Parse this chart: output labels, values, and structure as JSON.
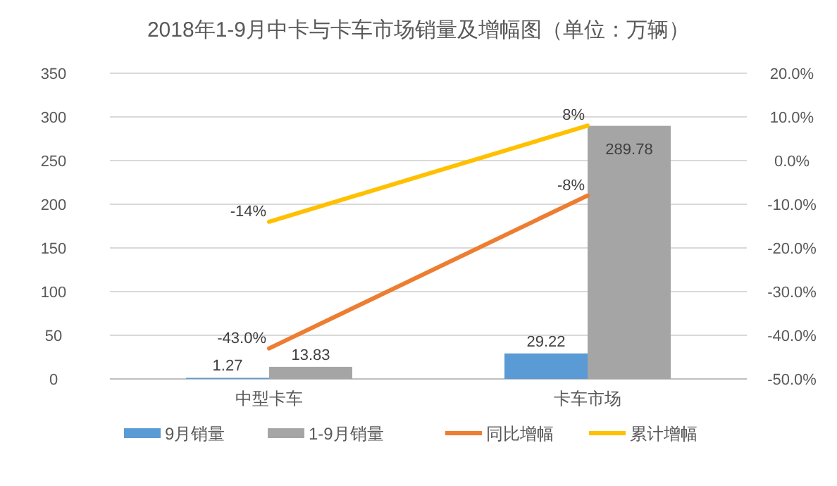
{
  "chart_data": {
    "type": "bar",
    "title": "2018年1-9月中卡与卡车市场销量及增幅图（单位：万辆）",
    "categories": [
      "中型卡车",
      "卡车市场"
    ],
    "series": [
      {
        "name": "9月销量",
        "color": "#5b9bd5",
        "values": [
          1.27,
          29.22
        ],
        "value_labels": [
          "1.27",
          "29.22"
        ]
      },
      {
        "name": "1-9月销量",
        "color": "#a5a5a5",
        "values": [
          13.83,
          289.78
        ],
        "value_labels": [
          "13.83",
          "289.78"
        ]
      },
      {
        "name": "同比增幅",
        "type": "line",
        "axis": "y2",
        "color": "#ed7d31",
        "values": [
          -43.0,
          -8
        ],
        "value_labels": [
          "-43.0%",
          "-8%"
        ]
      },
      {
        "name": "累计增幅",
        "type": "line",
        "axis": "y2",
        "color": "#ffc000",
        "values": [
          -14,
          8
        ],
        "value_labels": [
          "-14%",
          "8%"
        ]
      }
    ],
    "ylim": [
      0,
      350
    ],
    "yticks": [
      0,
      50,
      100,
      150,
      200,
      250,
      300,
      350
    ],
    "y2lim": [
      -50,
      20
    ],
    "y2ticks": [
      {
        "value": -50,
        "label": "-50.0%"
      },
      {
        "value": -40,
        "label": "-40.0%"
      },
      {
        "value": -30,
        "label": "-30.0%"
      },
      {
        "value": -20,
        "label": "-20.0%"
      },
      {
        "value": -10,
        "label": "-10.0%"
      },
      {
        "value": 0,
        "label": "0.0%"
      },
      {
        "value": 10,
        "label": "10.0%"
      },
      {
        "value": 20,
        "label": "20.0%"
      }
    ],
    "grid": "y",
    "legend": "bottom"
  }
}
